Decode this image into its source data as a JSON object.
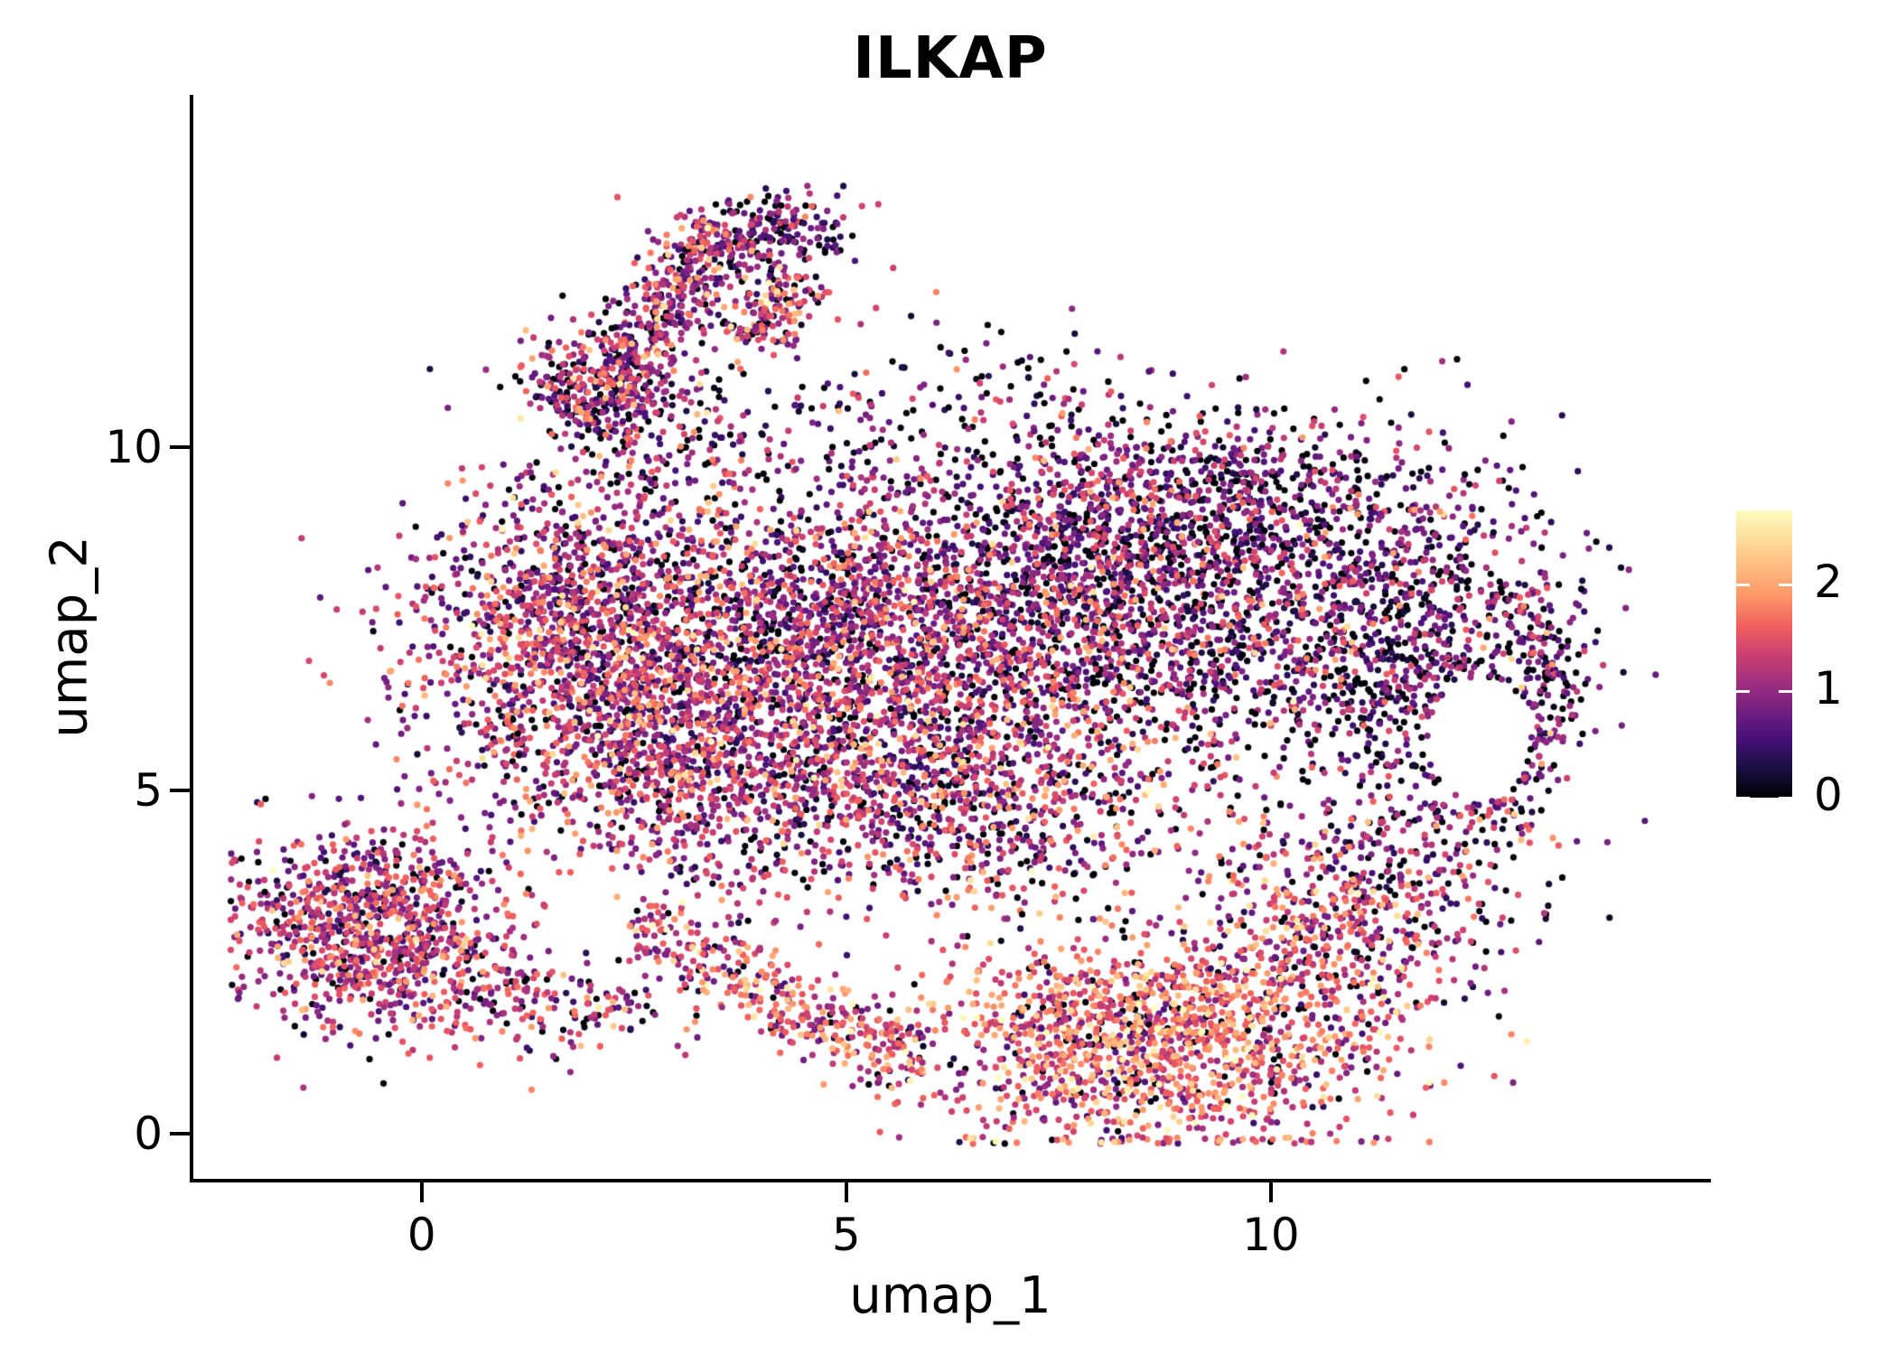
{
  "chart_data": {
    "type": "scatter",
    "title": "ILKAP",
    "xlabel": "umap_1",
    "ylabel": "umap_2",
    "xlim": [
      -2.71,
      15.16
    ],
    "ylim": [
      -0.66,
      15.13
    ],
    "x_ticks": [
      0,
      5,
      10
    ],
    "y_ticks": [
      0,
      5,
      10
    ],
    "grid": false,
    "legend_position": "right-colorbar",
    "point_radius_px": 3.6,
    "seed": 42,
    "color_scale": {
      "name": "magma",
      "domain": [
        0,
        2.7
      ],
      "ticks": [
        0,
        1,
        2
      ],
      "stops": [
        [
          0.0,
          "#000004"
        ],
        [
          0.1,
          "#180f3e"
        ],
        [
          0.2,
          "#451077"
        ],
        [
          0.3,
          "#721f81"
        ],
        [
          0.4,
          "#9f2f7f"
        ],
        [
          0.5,
          "#cd4071"
        ],
        [
          0.6,
          "#f1605d"
        ],
        [
          0.7,
          "#fd9668"
        ],
        [
          0.8,
          "#feba80"
        ],
        [
          0.9,
          "#fedd9a"
        ],
        [
          1.0,
          "#fcfdbf"
        ]
      ]
    },
    "holes": [
      {
        "cx": 12.45,
        "cy": 5.75,
        "rx": 0.6,
        "ry": 0.9
      }
    ],
    "clusters": [
      {
        "name": "arm-band",
        "type": "path",
        "path": [
          [
            1.9,
            10.3
          ],
          [
            2.5,
            11.3
          ],
          [
            3.1,
            12.5
          ],
          [
            3.55,
            13.2
          ]
        ],
        "w": 0.3,
        "n": 620,
        "value": {
          "mean": 1.0,
          "sd": 0.55,
          "p_zero": 0.12
        }
      },
      {
        "name": "arm-top-clump",
        "type": "blob",
        "cx": 4.15,
        "cy": 13.15,
        "sdx": 0.45,
        "sdy": 0.28,
        "n": 190,
        "value": {
          "mean": 0.8,
          "sd": 0.5,
          "p_zero": 0.15
        }
      },
      {
        "name": "arm-right-streak",
        "type": "path",
        "path": [
          [
            3.8,
            11.5
          ],
          [
            4.5,
            12.5
          ]
        ],
        "w": 0.22,
        "n": 150,
        "value": {
          "mean": 1.15,
          "sd": 0.6,
          "p_zero": 0.1
        }
      },
      {
        "name": "arm-left-edge",
        "type": "blob",
        "cx": 1.6,
        "cy": 11.0,
        "sdx": 0.28,
        "sdy": 0.33,
        "n": 70,
        "value": {
          "mean": 1.0,
          "sd": 0.55,
          "p_zero": 0.12
        }
      },
      {
        "name": "arm-base-scatter",
        "type": "blob",
        "cx": 2.7,
        "cy": 10.35,
        "sdx": 0.8,
        "sdy": 0.5,
        "n": 170,
        "value": {
          "mean": 0.9,
          "sd": 0.6,
          "p_zero": 0.18
        }
      },
      {
        "name": "upper-scatter",
        "type": "blob",
        "cx": 6.2,
        "cy": 10.7,
        "sdx": 1.6,
        "sdy": 0.6,
        "n": 150,
        "value": {
          "mean": 0.7,
          "sd": 0.55,
          "p_zero": 0.25
        }
      },
      {
        "name": "body-left",
        "type": "blob",
        "cx": 1.9,
        "cy": 7.3,
        "sdx": 1.0,
        "sdy": 1.15,
        "n": 1500,
        "value": {
          "mean": 1.1,
          "sd": 0.55,
          "p_zero": 0.1
        }
      },
      {
        "name": "body-center",
        "type": "blob",
        "cx": 4.9,
        "cy": 7.3,
        "sdx": 1.5,
        "sdy": 1.25,
        "n": 1900,
        "value": {
          "mean": 1.0,
          "sd": 0.58,
          "p_zero": 0.13
        }
      },
      {
        "name": "body-right",
        "type": "blob",
        "cx": 8.2,
        "cy": 7.6,
        "sdx": 1.5,
        "sdy": 1.15,
        "n": 1800,
        "value": {
          "mean": 0.9,
          "sd": 0.58,
          "p_zero": 0.16
        }
      },
      {
        "name": "body-top-right",
        "type": "blob",
        "cx": 9.3,
        "cy": 9.2,
        "sdx": 1.6,
        "sdy": 0.65,
        "n": 800,
        "value": {
          "mean": 0.75,
          "sd": 0.5,
          "p_zero": 0.2
        }
      },
      {
        "name": "right-lobe",
        "type": "blob",
        "cx": 11.6,
        "cy": 7.0,
        "sdx": 0.95,
        "sdy": 1.15,
        "n": 850,
        "value": {
          "mean": 0.7,
          "sd": 0.5,
          "p_zero": 0.22
        }
      },
      {
        "name": "right-rim",
        "type": "path",
        "path": [
          [
            12.5,
            4.5
          ],
          [
            13.15,
            5.6
          ],
          [
            13.3,
            6.8
          ],
          [
            12.9,
            7.9
          ]
        ],
        "w": 0.25,
        "n": 230,
        "value": {
          "mean": 0.75,
          "sd": 0.55,
          "p_zero": 0.2
        }
      },
      {
        "name": "body-low-mid",
        "type": "blob",
        "cx": 5.8,
        "cy": 5.2,
        "sdx": 1.7,
        "sdy": 0.8,
        "n": 1000,
        "value": {
          "mean": 1.1,
          "sd": 0.6,
          "p_zero": 0.1
        }
      },
      {
        "name": "body-low-left",
        "type": "blob",
        "cx": 3.0,
        "cy": 5.4,
        "sdx": 0.95,
        "sdy": 0.85,
        "n": 600,
        "value": {
          "mean": 1.15,
          "sd": 0.55,
          "p_zero": 0.08
        }
      },
      {
        "name": "gap-scatter",
        "type": "blob",
        "cx": 6.5,
        "cy": 4.0,
        "sdx": 2.2,
        "sdy": 0.5,
        "n": 220,
        "value": {
          "mean": 1.1,
          "sd": 0.6,
          "p_zero": 0.12
        }
      },
      {
        "name": "bottom-left-cluster",
        "type": "blob",
        "cx": -0.55,
        "cy": 3.0,
        "sdx": 0.78,
        "sdy": 0.72,
        "n": 950,
        "value": {
          "mean": 1.2,
          "sd": 0.5,
          "p_zero": 0.06
        },
        "xmin": -2.25
      },
      {
        "name": "bottom-left-tail",
        "type": "blob",
        "cx": 0.75,
        "cy": 2.15,
        "sdx": 0.4,
        "sdy": 0.35,
        "n": 90,
        "value": {
          "mean": 1.1,
          "sd": 0.5,
          "p_zero": 0.1
        }
      },
      {
        "name": "lower-trail",
        "type": "blob",
        "cx": 1.9,
        "cy": 1.75,
        "sdx": 0.6,
        "sdy": 0.35,
        "n": 110,
        "value": {
          "mean": 1.2,
          "sd": 0.55,
          "p_zero": 0.1
        }
      },
      {
        "name": "bottom-arc",
        "type": "path",
        "path": [
          [
            2.5,
            3.1
          ],
          [
            3.6,
            2.3
          ],
          [
            4.9,
            1.55
          ],
          [
            6.0,
            1.1
          ]
        ],
        "w": 0.28,
        "n": 380,
        "value": {
          "mean": 1.45,
          "sd": 0.5,
          "p_zero": 0.06
        }
      },
      {
        "name": "bottom-bulge",
        "type": "blob",
        "cx": 8.6,
        "cy": 1.4,
        "sdx": 1.35,
        "sdy": 0.8,
        "n": 1500,
        "value": {
          "mean": 1.55,
          "sd": 0.55,
          "p_zero": 0.07
        },
        "ymin": -0.15
      },
      {
        "name": "bulge-right-rise",
        "type": "blob",
        "cx": 10.7,
        "cy": 2.9,
        "sdx": 0.75,
        "sdy": 0.9,
        "n": 450,
        "value": {
          "mean": 1.3,
          "sd": 0.55,
          "p_zero": 0.1
        }
      },
      {
        "name": "right-low-scatter",
        "type": "blob",
        "cx": 11.9,
        "cy": 3.9,
        "sdx": 0.8,
        "sdy": 0.8,
        "n": 200,
        "value": {
          "mean": 0.9,
          "sd": 0.55,
          "p_zero": 0.15
        }
      }
    ]
  }
}
